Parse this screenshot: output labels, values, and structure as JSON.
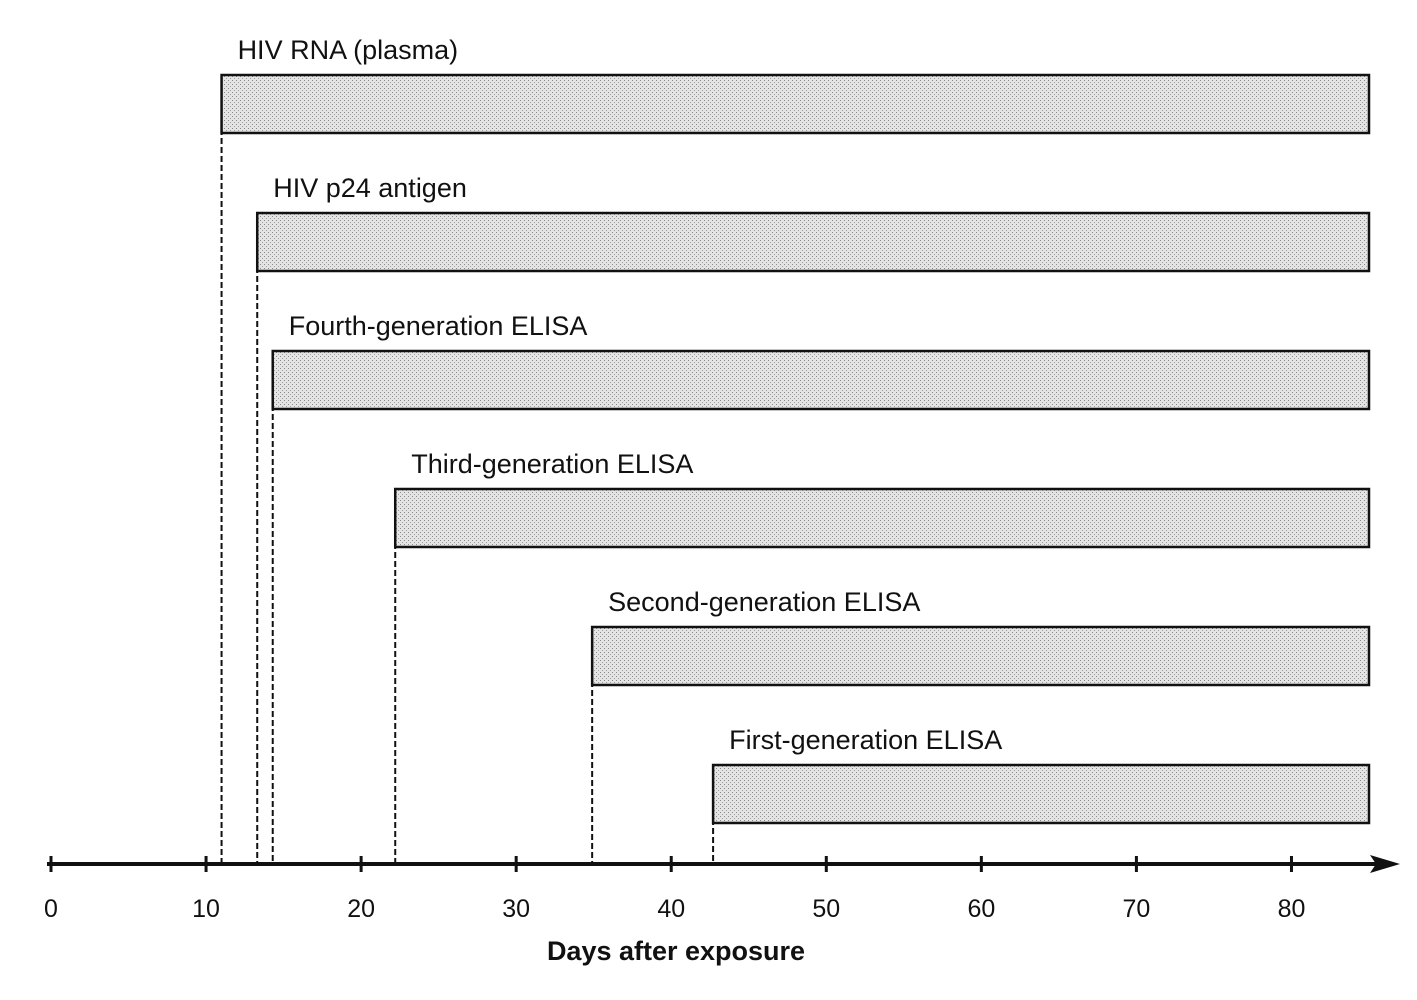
{
  "chart_data": {
    "type": "bar",
    "orientation": "horizontal",
    "xlabel": "Days after exposure",
    "xlim": [
      0,
      85
    ],
    "xticks": [
      "0",
      "10",
      "20",
      "30",
      "40",
      "50",
      "60",
      "70",
      "80"
    ],
    "grid": false,
    "series": [
      {
        "name": "HIV RNA (plasma)",
        "start": 11,
        "end": 85
      },
      {
        "name": "HIV p24 antigen",
        "start": 13.3,
        "end": 85
      },
      {
        "name": "Fourth-generation ELISA",
        "start": 14.3,
        "end": 85
      },
      {
        "name": "Third-generation ELISA",
        "start": 22.2,
        "end": 85
      },
      {
        "name": "Second-generation ELISA",
        "start": 34.9,
        "end": 85
      },
      {
        "name": "First-generation ELISA",
        "start": 42.7,
        "end": 85
      }
    ]
  },
  "colors": {
    "bar_fill": "#dcdcdc",
    "ink": "#111111"
  }
}
